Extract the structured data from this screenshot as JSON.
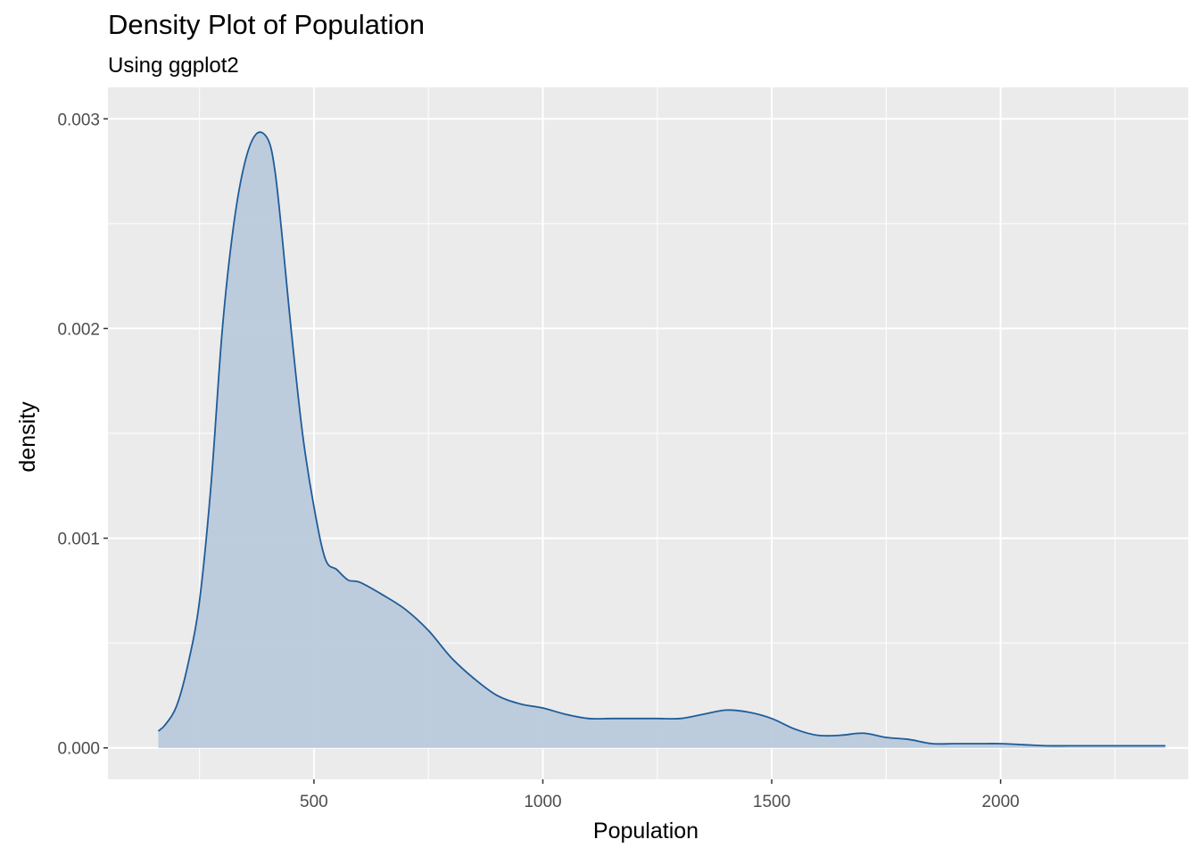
{
  "chart_data": {
    "type": "area",
    "title": "Density Plot of Population",
    "subtitle": "Using ggplot2",
    "xlabel": "Population",
    "ylabel": "density",
    "xlim": [
      50,
      2410
    ],
    "ylim": [
      -0.00015,
      0.00315
    ],
    "x_ticks": [
      500,
      1000,
      1500,
      2000
    ],
    "x_tick_labels": [
      "500",
      "1000",
      "1500",
      "2000"
    ],
    "y_ticks": [
      0,
      0.001,
      0.002,
      0.003
    ],
    "y_tick_labels": [
      "0.000",
      "0.001",
      "0.002",
      "0.003"
    ],
    "grid": true,
    "colors": {
      "panel_bg": "#EBEBEB",
      "grid": "#FFFFFF",
      "fill": "#B9CADB",
      "line": "#1F5C99",
      "text": "#4D4D4D"
    },
    "series": [
      {
        "x": [
          160,
          175,
          200,
          225,
          250,
          275,
          300,
          325,
          350,
          375,
          400,
          415,
          430,
          450,
          475,
          500,
          525,
          550,
          575,
          600,
          650,
          700,
          750,
          800,
          850,
          900,
          950,
          1000,
          1050,
          1100,
          1150,
          1200,
          1250,
          1300,
          1350,
          1400,
          1450,
          1500,
          1550,
          1600,
          1650,
          1700,
          1750,
          1800,
          1850,
          1900,
          1950,
          2000,
          2050,
          2100,
          2150,
          2200,
          2250,
          2300,
          2350,
          2360
        ],
        "y": [
          8e-05,
          0.00011,
          0.0002,
          0.0004,
          0.0007,
          0.00125,
          0.002,
          0.0025,
          0.0028,
          0.00293,
          0.0029,
          0.00275,
          0.00245,
          0.002,
          0.0015,
          0.00115,
          0.0009,
          0.00085,
          0.0008,
          0.00079,
          0.00073,
          0.00066,
          0.00056,
          0.00043,
          0.00033,
          0.00025,
          0.00021,
          0.00019,
          0.00016,
          0.00014,
          0.00014,
          0.00014,
          0.00014,
          0.00014,
          0.00016,
          0.00018,
          0.00017,
          0.00014,
          9e-05,
          6e-05,
          6e-05,
          7e-05,
          5e-05,
          4e-05,
          2e-05,
          2e-05,
          2e-05,
          2e-05,
          1.5e-05,
          1e-05,
          1e-05,
          1e-05,
          1e-05,
          1e-05,
          1e-05,
          1e-05
        ]
      }
    ]
  }
}
